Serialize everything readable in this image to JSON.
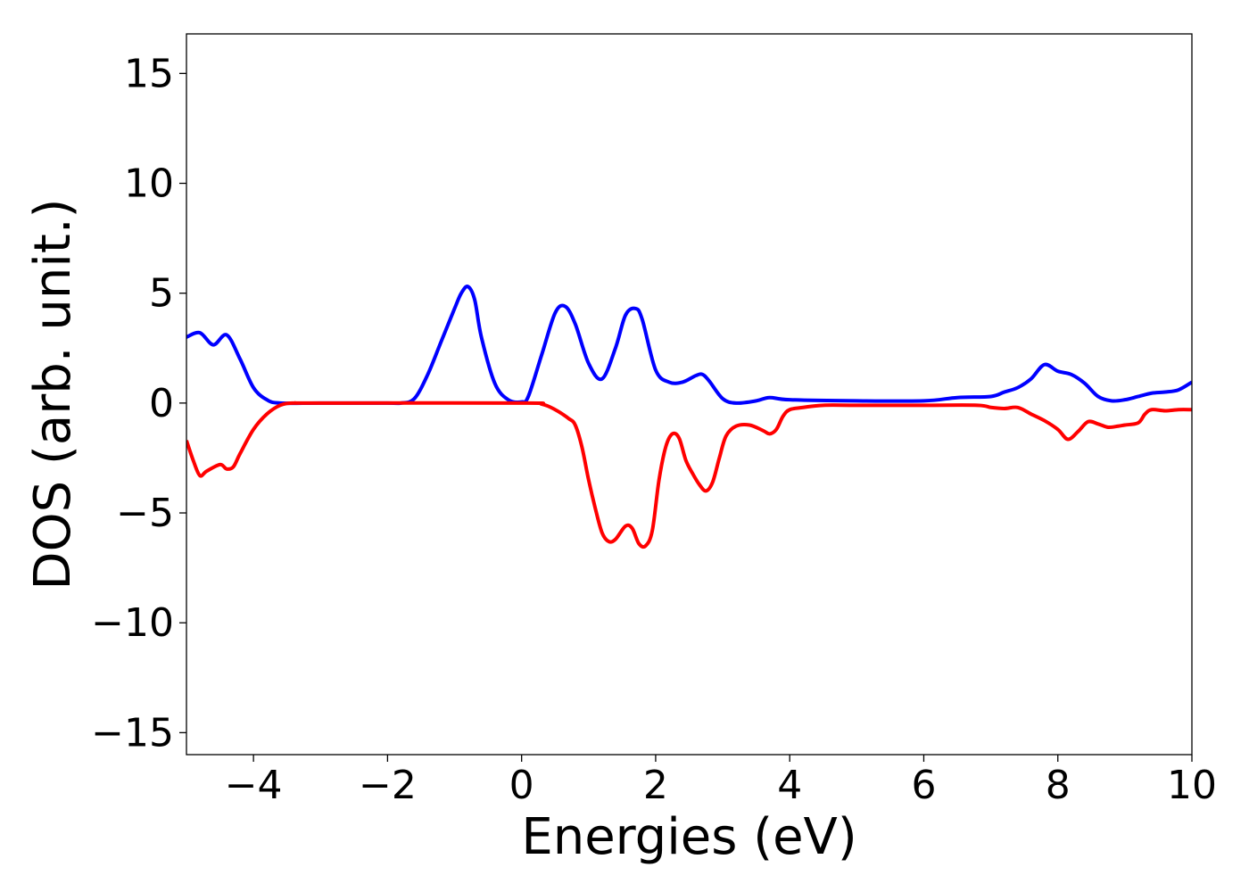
{
  "chart_data": {
    "type": "line",
    "xlabel": "Energies (eV)",
    "ylabel": "DOS (arb. unit.)",
    "xlim": [
      -5,
      10
    ],
    "ylim": [
      -16,
      16.8
    ],
    "xticks": [
      -4,
      -2,
      0,
      2,
      4,
      6,
      8,
      10
    ],
    "xtick_labels": [
      "−4",
      "−2",
      "0",
      "2",
      "4",
      "6",
      "8",
      "10"
    ],
    "yticks": [
      15,
      10,
      5,
      0,
      -5,
      -10,
      -15
    ],
    "ytick_labels": [
      "15",
      "10",
      "5",
      "0",
      "−5",
      "−10",
      "−15"
    ],
    "grid": false,
    "legend": false,
    "series": [
      {
        "color": "#0000ff",
        "x": [
          -5.0,
          -4.8,
          -4.6,
          -4.4,
          -4.2,
          -4.0,
          -3.8,
          -3.6,
          -3.0,
          -2.0,
          -1.8,
          -1.6,
          -1.4,
          -1.2,
          -1.0,
          -0.9,
          -0.8,
          -0.7,
          -0.6,
          -0.4,
          -0.2,
          0.0,
          0.1,
          0.3,
          0.5,
          0.65,
          0.8,
          1.0,
          1.2,
          1.4,
          1.55,
          1.7,
          1.8,
          2.0,
          2.2,
          2.4,
          2.6,
          2.7,
          2.8,
          3.0,
          3.2,
          3.5,
          3.7,
          4.0,
          5.0,
          6.0,
          6.5,
          7.0,
          7.2,
          7.4,
          7.6,
          7.8,
          8.0,
          8.2,
          8.4,
          8.6,
          8.8,
          9.0,
          9.2,
          9.4,
          9.6,
          9.8,
          10.0
        ],
        "y": [
          3.0,
          3.2,
          2.65,
          3.1,
          2.0,
          0.7,
          0.15,
          0.0,
          0.0,
          0.0,
          0.0,
          0.2,
          1.3,
          2.8,
          4.3,
          5.0,
          5.3,
          4.7,
          3.0,
          0.9,
          0.15,
          0.05,
          0.3,
          2.2,
          4.1,
          4.4,
          3.6,
          1.8,
          1.1,
          2.5,
          4.0,
          4.3,
          3.8,
          1.5,
          0.95,
          0.95,
          1.25,
          1.3,
          1.0,
          0.2,
          0.0,
          0.1,
          0.25,
          0.15,
          0.1,
          0.1,
          0.25,
          0.3,
          0.5,
          0.7,
          1.1,
          1.75,
          1.45,
          1.3,
          0.9,
          0.3,
          0.1,
          0.15,
          0.3,
          0.45,
          0.5,
          0.6,
          0.95
        ]
      },
      {
        "color": "#ff0000",
        "x": [
          -5.0,
          -4.9,
          -4.8,
          -4.7,
          -4.5,
          -4.4,
          -4.3,
          -4.2,
          -4.0,
          -3.8,
          -3.6,
          -3.4,
          -3.0,
          0.0,
          0.3,
          0.5,
          0.7,
          0.8,
          0.9,
          1.0,
          1.1,
          1.2,
          1.3,
          1.4,
          1.55,
          1.65,
          1.75,
          1.85,
          1.95,
          2.05,
          2.15,
          2.25,
          2.35,
          2.45,
          2.55,
          2.65,
          2.75,
          2.85,
          2.95,
          3.05,
          3.2,
          3.4,
          3.6,
          3.7,
          3.8,
          3.9,
          4.0,
          4.2,
          4.5,
          5.0,
          6.0,
          6.8,
          7.0,
          7.2,
          7.4,
          7.6,
          7.8,
          8.0,
          8.15,
          8.3,
          8.45,
          8.6,
          8.75,
          8.9,
          9.0,
          9.2,
          9.3,
          9.4,
          9.6,
          9.8,
          10.0
        ],
        "y": [
          -1.7,
          -2.6,
          -3.3,
          -3.1,
          -2.8,
          -3.0,
          -2.9,
          -2.3,
          -1.2,
          -0.5,
          -0.1,
          0.0,
          0.0,
          0.0,
          -0.05,
          -0.3,
          -0.7,
          -1.0,
          -2.0,
          -3.5,
          -4.8,
          -5.9,
          -6.3,
          -6.2,
          -5.6,
          -5.7,
          -6.4,
          -6.5,
          -5.8,
          -3.5,
          -2.0,
          -1.4,
          -1.6,
          -2.6,
          -3.2,
          -3.7,
          -4.0,
          -3.6,
          -2.5,
          -1.5,
          -1.05,
          -1.0,
          -1.25,
          -1.4,
          -1.2,
          -0.6,
          -0.3,
          -0.2,
          -0.1,
          -0.1,
          -0.1,
          -0.1,
          -0.2,
          -0.25,
          -0.2,
          -0.5,
          -0.8,
          -1.2,
          -1.65,
          -1.3,
          -0.85,
          -0.95,
          -1.1,
          -1.05,
          -1.0,
          -0.9,
          -0.5,
          -0.3,
          -0.35,
          -0.3,
          -0.3
        ]
      }
    ]
  }
}
